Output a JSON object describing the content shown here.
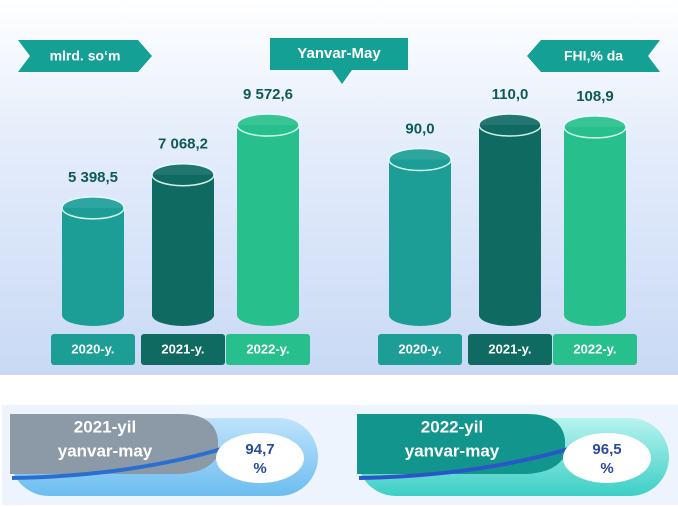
{
  "header": {
    "title": "Yanvar-May"
  },
  "chart_data": [
    {
      "type": "bar",
      "unit": "mlrd. so‘m",
      "categories": [
        "2020-y.",
        "2021-y.",
        "2022-y."
      ],
      "values": [
        5398.5,
        7068.2,
        9572.6
      ],
      "value_labels": [
        "5 398,5",
        "7 068,2",
        "9 572,6"
      ],
      "colors": [
        "#1c9e97",
        "#0f6a62",
        "#27c08c"
      ]
    },
    {
      "type": "bar",
      "unit": "FHI,% da",
      "categories": [
        "2020-y.",
        "2021-y.",
        "2022-y."
      ],
      "values": [
        90.0,
        110.0,
        108.9
      ],
      "value_labels": [
        "90,0",
        "110,0",
        "108,9"
      ],
      "colors": [
        "#1c9e97",
        "#0f6a62",
        "#27c08c"
      ]
    }
  ],
  "badges": [
    {
      "line1": "2021-yil",
      "line2": "yanvar-may",
      "value": "94,7",
      "unit": "%"
    },
    {
      "line1": "2022-yil",
      "line2": "yanvar-may",
      "value": "96,5",
      "unit": "%"
    }
  ]
}
